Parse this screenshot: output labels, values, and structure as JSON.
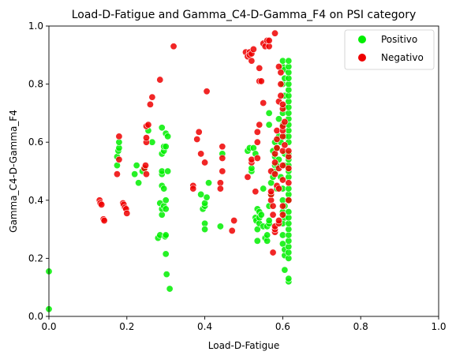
{
  "chart_data": {
    "type": "scatter",
    "title": "Load-D-Fatigue and Gamma_C4-D-Gamma_F4 on PSI category",
    "xlabel": "Load-D-Fatigue",
    "ylabel": "Gamma_C4-D-Gamma_F4",
    "xlim": [
      0.0,
      1.0
    ],
    "ylim": [
      0.0,
      1.0
    ],
    "xticks": [
      "0.0",
      "0.2",
      "0.4",
      "0.6",
      "0.8",
      "1.0"
    ],
    "yticks": [
      "0.0",
      "0.2",
      "0.4",
      "0.6",
      "0.8",
      "1.0"
    ],
    "legend_position": "top-right",
    "grid": false,
    "series": [
      {
        "name": "Positivo",
        "color": "#00ee00",
        "points": [
          [
            0.0,
            0.155
          ],
          [
            0.0,
            0.025
          ],
          [
            0.175,
            0.52
          ],
          [
            0.175,
            0.55
          ],
          [
            0.178,
            0.57
          ],
          [
            0.18,
            0.58
          ],
          [
            0.18,
            0.6
          ],
          [
            0.22,
            0.49
          ],
          [
            0.225,
            0.52
          ],
          [
            0.23,
            0.46
          ],
          [
            0.24,
            0.5
          ],
          [
            0.245,
            0.51
          ],
          [
            0.255,
            0.64
          ],
          [
            0.265,
            0.6
          ],
          [
            0.28,
            0.27
          ],
          [
            0.285,
            0.28
          ],
          [
            0.285,
            0.39
          ],
          [
            0.29,
            0.35
          ],
          [
            0.29,
            0.37
          ],
          [
            0.29,
            0.45
          ],
          [
            0.29,
            0.49
          ],
          [
            0.29,
            0.5
          ],
          [
            0.29,
            0.56
          ],
          [
            0.29,
            0.65
          ],
          [
            0.295,
            0.38
          ],
          [
            0.295,
            0.44
          ],
          [
            0.295,
            0.57
          ],
          [
            0.295,
            0.585
          ],
          [
            0.298,
            0.275
          ],
          [
            0.3,
            0.28
          ],
          [
            0.3,
            0.215
          ],
          [
            0.3,
            0.37
          ],
          [
            0.3,
            0.4
          ],
          [
            0.3,
            0.63
          ],
          [
            0.3,
            0.585
          ],
          [
            0.302,
            0.145
          ],
          [
            0.305,
            0.5
          ],
          [
            0.305,
            0.62
          ],
          [
            0.31,
            0.095
          ],
          [
            0.39,
            0.42
          ],
          [
            0.395,
            0.37
          ],
          [
            0.4,
            0.38
          ],
          [
            0.4,
            0.39
          ],
          [
            0.4,
            0.32
          ],
          [
            0.4,
            0.3
          ],
          [
            0.405,
            0.41
          ],
          [
            0.41,
            0.46
          ],
          [
            0.44,
            0.31
          ],
          [
            0.445,
            0.56
          ],
          [
            0.51,
            0.57
          ],
          [
            0.515,
            0.58
          ],
          [
            0.52,
            0.5
          ],
          [
            0.52,
            0.51
          ],
          [
            0.525,
            0.58
          ],
          [
            0.53,
            0.56
          ],
          [
            0.53,
            0.34
          ],
          [
            0.532,
            0.33
          ],
          [
            0.535,
            0.26
          ],
          [
            0.535,
            0.3
          ],
          [
            0.535,
            0.37
          ],
          [
            0.54,
            0.32
          ],
          [
            0.54,
            0.34
          ],
          [
            0.54,
            0.36
          ],
          [
            0.545,
            0.35
          ],
          [
            0.55,
            0.31
          ],
          [
            0.55,
            0.44
          ],
          [
            0.555,
            0.27
          ],
          [
            0.56,
            0.26
          ],
          [
            0.56,
            0.28
          ],
          [
            0.56,
            0.31
          ],
          [
            0.565,
            0.32
          ],
          [
            0.565,
            0.33
          ],
          [
            0.565,
            0.38
          ],
          [
            0.565,
            0.66
          ],
          [
            0.565,
            0.7
          ],
          [
            0.57,
            0.42
          ],
          [
            0.57,
            0.46
          ],
          [
            0.575,
            0.48
          ],
          [
            0.575,
            0.57
          ],
          [
            0.58,
            0.5
          ],
          [
            0.58,
            0.52
          ],
          [
            0.58,
            0.55
          ],
          [
            0.58,
            0.6
          ],
          [
            0.585,
            0.44
          ],
          [
            0.585,
            0.52
          ],
          [
            0.585,
            0.58
          ],
          [
            0.59,
            0.54
          ],
          [
            0.59,
            0.62
          ],
          [
            0.59,
            0.68
          ],
          [
            0.595,
            0.48
          ],
          [
            0.595,
            0.6
          ],
          [
            0.6,
            0.25
          ],
          [
            0.6,
            0.28
          ],
          [
            0.6,
            0.32
          ],
          [
            0.6,
            0.36
          ],
          [
            0.6,
            0.4
          ],
          [
            0.6,
            0.44
          ],
          [
            0.6,
            0.66
          ],
          [
            0.6,
            0.7
          ],
          [
            0.6,
            0.8
          ],
          [
            0.6,
            0.86
          ],
          [
            0.6,
            0.88
          ],
          [
            0.605,
            0.16
          ],
          [
            0.605,
            0.21
          ],
          [
            0.605,
            0.23
          ],
          [
            0.605,
            0.34
          ],
          [
            0.605,
            0.38
          ],
          [
            0.605,
            0.52
          ],
          [
            0.605,
            0.56
          ],
          [
            0.605,
            0.62
          ],
          [
            0.605,
            0.72
          ],
          [
            0.605,
            0.76
          ],
          [
            0.605,
            0.82
          ],
          [
            0.605,
            0.85
          ],
          [
            0.615,
            0.12
          ],
          [
            0.615,
            0.13
          ],
          [
            0.615,
            0.2
          ],
          [
            0.615,
            0.22
          ],
          [
            0.615,
            0.24
          ],
          [
            0.615,
            0.26
          ],
          [
            0.615,
            0.28
          ],
          [
            0.615,
            0.3
          ],
          [
            0.615,
            0.32
          ],
          [
            0.615,
            0.34
          ],
          [
            0.615,
            0.36
          ],
          [
            0.615,
            0.4
          ],
          [
            0.615,
            0.42
          ],
          [
            0.615,
            0.44
          ],
          [
            0.615,
            0.48
          ],
          [
            0.615,
            0.5
          ],
          [
            0.615,
            0.52
          ],
          [
            0.615,
            0.54
          ],
          [
            0.615,
            0.56
          ],
          [
            0.615,
            0.6
          ],
          [
            0.615,
            0.62
          ],
          [
            0.615,
            0.64
          ],
          [
            0.615,
            0.66
          ],
          [
            0.615,
            0.68
          ],
          [
            0.615,
            0.7
          ],
          [
            0.615,
            0.72
          ],
          [
            0.615,
            0.74
          ],
          [
            0.615,
            0.76
          ],
          [
            0.615,
            0.78
          ],
          [
            0.615,
            0.8
          ],
          [
            0.615,
            0.82
          ],
          [
            0.615,
            0.84
          ],
          [
            0.615,
            0.86
          ],
          [
            0.615,
            0.88
          ]
        ]
      },
      {
        "name": "Negativo",
        "color": "#ee0000",
        "points": [
          [
            0.13,
            0.4
          ],
          [
            0.132,
            0.39
          ],
          [
            0.135,
            0.385
          ],
          [
            0.14,
            0.335
          ],
          [
            0.142,
            0.33
          ],
          [
            0.175,
            0.49
          ],
          [
            0.18,
            0.54
          ],
          [
            0.18,
            0.62
          ],
          [
            0.19,
            0.39
          ],
          [
            0.192,
            0.385
          ],
          [
            0.195,
            0.375
          ],
          [
            0.198,
            0.37
          ],
          [
            0.2,
            0.355
          ],
          [
            0.245,
            0.51
          ],
          [
            0.248,
            0.52
          ],
          [
            0.25,
            0.49
          ],
          [
            0.25,
            0.6
          ],
          [
            0.25,
            0.615
          ],
          [
            0.25,
            0.655
          ],
          [
            0.255,
            0.66
          ],
          [
            0.26,
            0.73
          ],
          [
            0.265,
            0.755
          ],
          [
            0.285,
            0.815
          ],
          [
            0.32,
            0.93
          ],
          [
            0.37,
            0.45
          ],
          [
            0.37,
            0.44
          ],
          [
            0.38,
            0.61
          ],
          [
            0.385,
            0.635
          ],
          [
            0.39,
            0.56
          ],
          [
            0.4,
            0.53
          ],
          [
            0.405,
            0.775
          ],
          [
            0.44,
            0.46
          ],
          [
            0.44,
            0.44
          ],
          [
            0.445,
            0.585
          ],
          [
            0.445,
            0.5
          ],
          [
            0.445,
            0.545
          ],
          [
            0.47,
            0.295
          ],
          [
            0.475,
            0.33
          ],
          [
            0.505,
            0.91
          ],
          [
            0.51,
            0.895
          ],
          [
            0.51,
            0.48
          ],
          [
            0.515,
            0.91
          ],
          [
            0.515,
            0.9
          ],
          [
            0.52,
            0.905
          ],
          [
            0.52,
            0.53
          ],
          [
            0.52,
            0.54
          ],
          [
            0.52,
            0.88
          ],
          [
            0.525,
            0.92
          ],
          [
            0.53,
            0.43
          ],
          [
            0.535,
            0.6
          ],
          [
            0.535,
            0.545
          ],
          [
            0.535,
            0.635
          ],
          [
            0.54,
            0.66
          ],
          [
            0.54,
            0.81
          ],
          [
            0.54,
            0.855
          ],
          [
            0.545,
            0.81
          ],
          [
            0.55,
            0.735
          ],
          [
            0.55,
            0.94
          ],
          [
            0.555,
            0.93
          ],
          [
            0.56,
            0.95
          ],
          [
            0.565,
            0.93
          ],
          [
            0.565,
            0.95
          ],
          [
            0.57,
            0.4
          ],
          [
            0.57,
            0.42
          ],
          [
            0.57,
            0.43
          ],
          [
            0.57,
            0.5
          ],
          [
            0.575,
            0.22
          ],
          [
            0.575,
            0.35
          ],
          [
            0.575,
            0.38
          ],
          [
            0.58,
            0.29
          ],
          [
            0.58,
            0.3
          ],
          [
            0.58,
            0.31
          ],
          [
            0.58,
            0.49
          ],
          [
            0.58,
            0.53
          ],
          [
            0.58,
            0.56
          ],
          [
            0.58,
            0.975
          ],
          [
            0.585,
            0.45
          ],
          [
            0.585,
            0.58
          ],
          [
            0.585,
            0.61
          ],
          [
            0.585,
            0.64
          ],
          [
            0.59,
            0.32
          ],
          [
            0.59,
            0.33
          ],
          [
            0.59,
            0.44
          ],
          [
            0.59,
            0.51
          ],
          [
            0.59,
            0.74
          ],
          [
            0.59,
            0.86
          ],
          [
            0.595,
            0.76
          ],
          [
            0.595,
            0.8
          ],
          [
            0.595,
            0.84
          ],
          [
            0.6,
            0.35
          ],
          [
            0.6,
            0.38
          ],
          [
            0.6,
            0.47
          ],
          [
            0.6,
            0.52
          ],
          [
            0.6,
            0.57
          ],
          [
            0.6,
            0.62
          ],
          [
            0.6,
            0.64
          ],
          [
            0.6,
            0.655
          ],
          [
            0.6,
            0.715
          ],
          [
            0.6,
            0.73
          ],
          [
            0.605,
            0.59
          ],
          [
            0.605,
            0.67
          ],
          [
            0.615,
            0.4
          ],
          [
            0.615,
            0.46
          ],
          [
            0.615,
            0.51
          ],
          [
            0.615,
            0.55
          ],
          [
            0.615,
            0.57
          ]
        ]
      }
    ]
  }
}
